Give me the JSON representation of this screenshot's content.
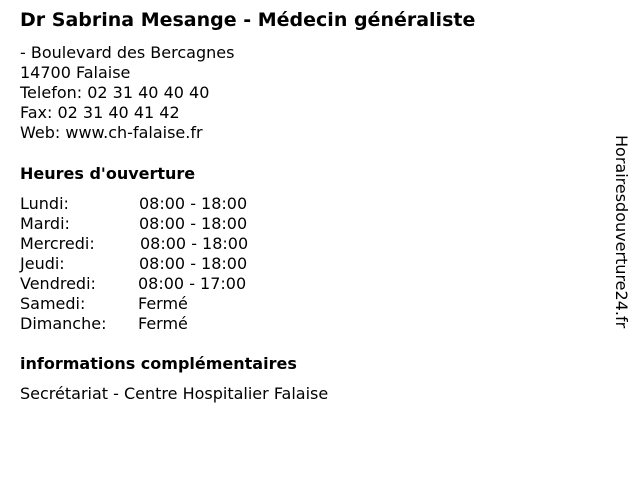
{
  "title": "Dr Sabrina Mesange - Médecin généraliste",
  "address": {
    "street": "- Boulevard des Bercagnes",
    "city": "14700 Falaise",
    "phone": "Telefon: 02 31 40 40 40",
    "fax": "Fax: 02 31 40 41 42",
    "web": "Web: www.ch-falaise.fr"
  },
  "hours": {
    "heading": "Heures d'ouverture",
    "days": [
      {
        "day": "Lundi:",
        "time": "08:00 - 18:00"
      },
      {
        "day": "Mardi:",
        "time": "08:00 - 18:00"
      },
      {
        "day": "Mercredi:",
        "time": "08:00 - 18:00"
      },
      {
        "day": "Jeudi:",
        "time": "08:00 - 18:00"
      },
      {
        "day": "Vendredi:",
        "time": "08:00 - 17:00"
      },
      {
        "day": "Samedi:",
        "time": "Fermé"
      },
      {
        "day": "Dimanche:",
        "time": "Fermé"
      }
    ]
  },
  "info": {
    "heading": "informations complémentaires",
    "text": "Secrétariat - Centre Hospitalier Falaise"
  },
  "watermark": "Horairesdouverture24.fr"
}
